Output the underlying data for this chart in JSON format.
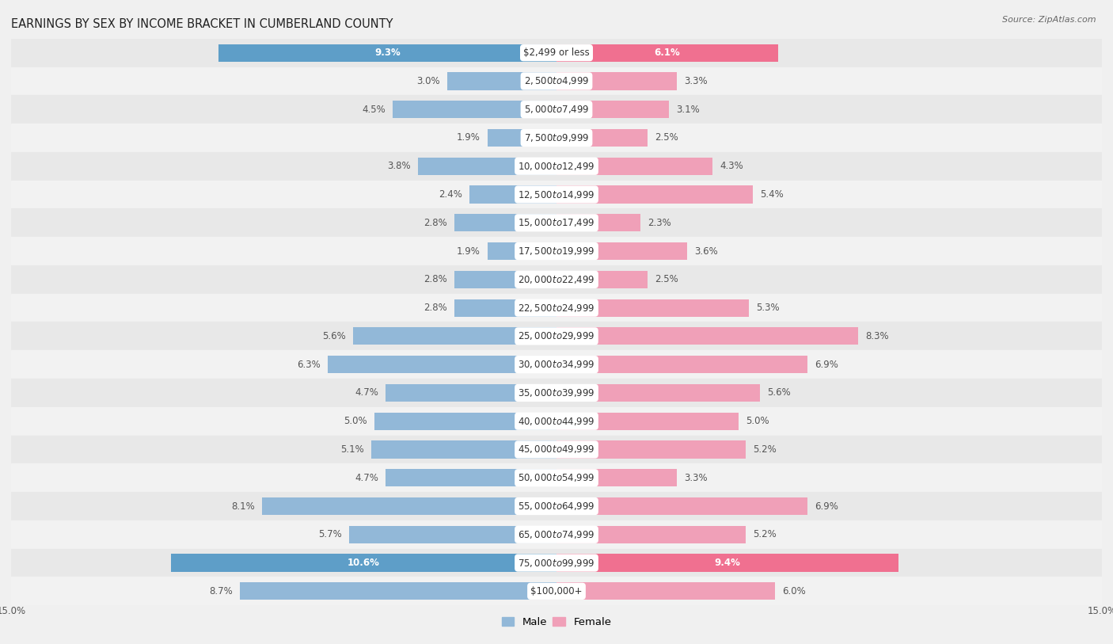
{
  "title": "EARNINGS BY SEX BY INCOME BRACKET IN CUMBERLAND COUNTY",
  "source": "Source: ZipAtlas.com",
  "categories": [
    "$2,499 or less",
    "$2,500 to $4,999",
    "$5,000 to $7,499",
    "$7,500 to $9,999",
    "$10,000 to $12,499",
    "$12,500 to $14,999",
    "$15,000 to $17,499",
    "$17,500 to $19,999",
    "$20,000 to $22,499",
    "$22,500 to $24,999",
    "$25,000 to $29,999",
    "$30,000 to $34,999",
    "$35,000 to $39,999",
    "$40,000 to $44,999",
    "$45,000 to $49,999",
    "$50,000 to $54,999",
    "$55,000 to $64,999",
    "$65,000 to $74,999",
    "$75,000 to $99,999",
    "$100,000+"
  ],
  "male_values": [
    9.3,
    3.0,
    4.5,
    1.9,
    3.8,
    2.4,
    2.8,
    1.9,
    2.8,
    2.8,
    5.6,
    6.3,
    4.7,
    5.0,
    5.1,
    4.7,
    8.1,
    5.7,
    10.6,
    8.7
  ],
  "female_values": [
    6.1,
    3.3,
    3.1,
    2.5,
    4.3,
    5.4,
    2.3,
    3.6,
    2.5,
    5.3,
    8.3,
    6.9,
    5.6,
    5.0,
    5.2,
    3.3,
    6.9,
    5.2,
    9.4,
    6.0
  ],
  "male_color": "#92b8d8",
  "female_color": "#f0a0b8",
  "male_highlight_color": "#5e9ec8",
  "female_highlight_color": "#f07090",
  "highlight_rows": [
    0,
    18
  ],
  "row_even_color": "#e8e8e8",
  "row_odd_color": "#f2f2f2",
  "background_color": "#f0f0f0",
  "xlim": 15.0,
  "title_fontsize": 10.5,
  "label_fontsize": 8.5,
  "value_fontsize": 8.5,
  "bar_height": 0.62,
  "legend_male": "Male",
  "legend_female": "Female"
}
